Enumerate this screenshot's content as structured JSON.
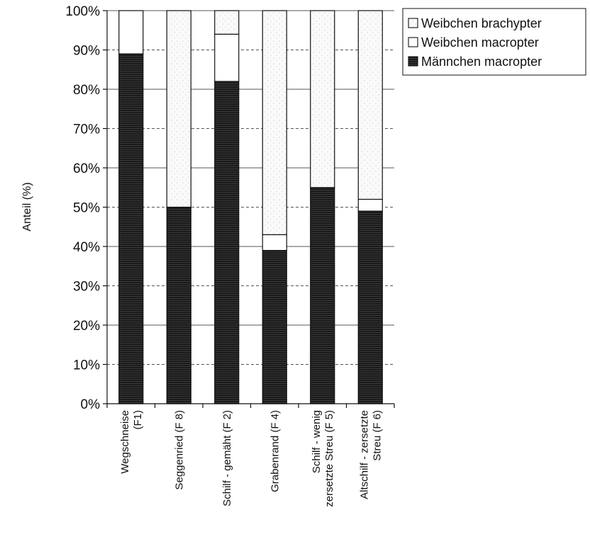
{
  "chart_data": {
    "type": "bar",
    "stacked": true,
    "ylabel": "Anteil (%)",
    "ylim": [
      0,
      100
    ],
    "yticks": [
      "0%",
      "10%",
      "20%",
      "30%",
      "40%",
      "50%",
      "60%",
      "70%",
      "80%",
      "90%",
      "100%"
    ],
    "grid": true,
    "legend_position": "top-right",
    "categories": [
      [
        "Wegschneise",
        "(F1)"
      ],
      [
        "Seggenried (F 8)"
      ],
      [
        "Schilf - gemäht  (F 2)"
      ],
      [
        "Grabenrand (F 4)"
      ],
      [
        "Schilf - wenig",
        "zersetzte Streu (F 5)"
      ],
      [
        "Altschilf - zersetzte",
        "Streu (F 6)"
      ]
    ],
    "series": [
      {
        "name": "Männchen macropter",
        "values": [
          89,
          50,
          82,
          39,
          55,
          49
        ]
      },
      {
        "name": "Weibchen macropter",
        "values": [
          11,
          0,
          12,
          4,
          0,
          3
        ]
      },
      {
        "name": "Weibchen brachypter",
        "values": [
          0,
          50,
          6,
          57,
          45,
          48
        ]
      }
    ],
    "legend_order": [
      "Weibchen brachypter",
      "Weibchen macropter",
      "Männchen macropter"
    ],
    "colors": {
      "Männchen macropter": "#1c1c1c",
      "Weibchen macropter": "#ffffff",
      "Weibchen brachypter": "#f3f3f3",
      "outline": "#111111",
      "grid": "#555555"
    }
  }
}
